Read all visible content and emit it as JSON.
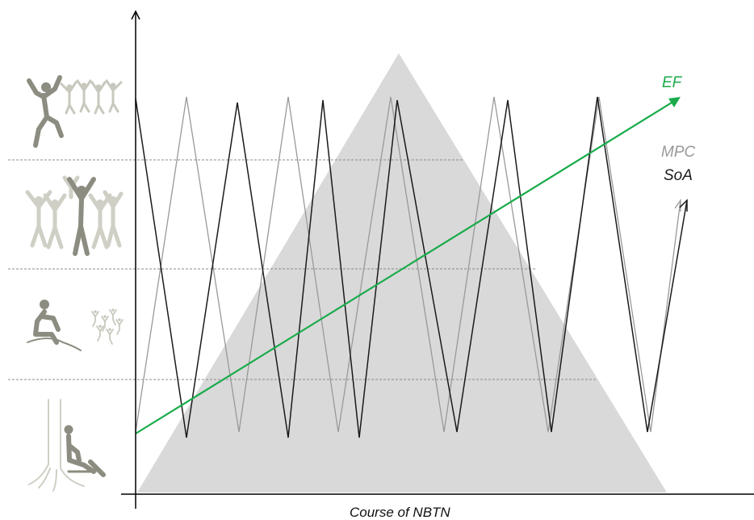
{
  "labels": {
    "ef": "EF",
    "mpc": "MPC",
    "soa": "SoA",
    "x_axis": "Course of NBTN"
  },
  "colors": {
    "ef": "#1aab4b",
    "mpc": "#999999",
    "soa": "#1a1a1a",
    "triangle": "#d9d9d9",
    "axis": "#000000",
    "figures_dark": "#8c8c80",
    "figures_light": "#cfcfc6"
  },
  "icons": [
    "jumping-people-icon",
    "dancing-group-icon",
    "sitting-person-icon",
    "person-sitting-at-tree-icon"
  ]
}
